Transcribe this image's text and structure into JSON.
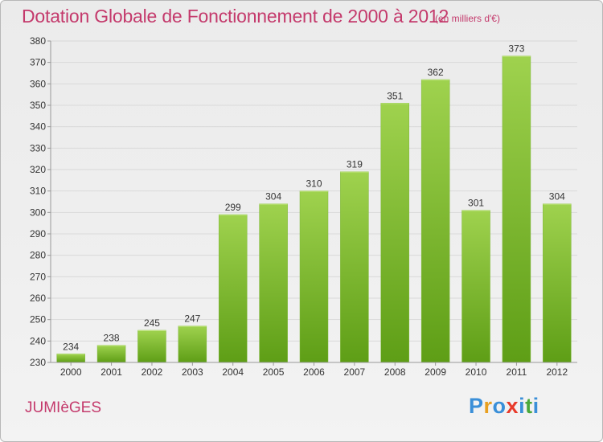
{
  "header": {
    "title": "Dotation Globale de Fonctionnement de 2000 à 2012",
    "unit_note": "(en milliers d'€)"
  },
  "footer": {
    "commune": "JUMIèGES",
    "logo_text": "Proxiti",
    "logo_letter_colors": [
      "#3a8fd8",
      "#e8a020",
      "#3a8fd8",
      "#e83a2a",
      "#3a8fd8",
      "#4aa83a",
      "#3a8fd8"
    ]
  },
  "colors": {
    "title": "#c43a6c",
    "bar_top": "#9fd24e",
    "bar_bottom": "#5e9e16",
    "grid": "#d9d9d9",
    "axis": "#999999"
  },
  "chart_data": {
    "type": "bar",
    "title": "Dotation Globale de Fonctionnement de 2000 à 2012",
    "subtitle": "(en milliers d'€)",
    "xlabel": "",
    "ylabel": "",
    "categories": [
      "2000",
      "2001",
      "2002",
      "2003",
      "2004",
      "2005",
      "2006",
      "2007",
      "2008",
      "2009",
      "2010",
      "2011",
      "2012"
    ],
    "values": [
      234,
      238,
      245,
      247,
      299,
      304,
      310,
      319,
      351,
      362,
      301,
      373,
      304
    ],
    "ylim": [
      230,
      380
    ],
    "yticks": [
      230,
      240,
      250,
      260,
      270,
      280,
      290,
      300,
      310,
      320,
      330,
      340,
      350,
      360,
      370,
      380
    ],
    "grid": true,
    "legend": "none",
    "data_labels": true
  }
}
